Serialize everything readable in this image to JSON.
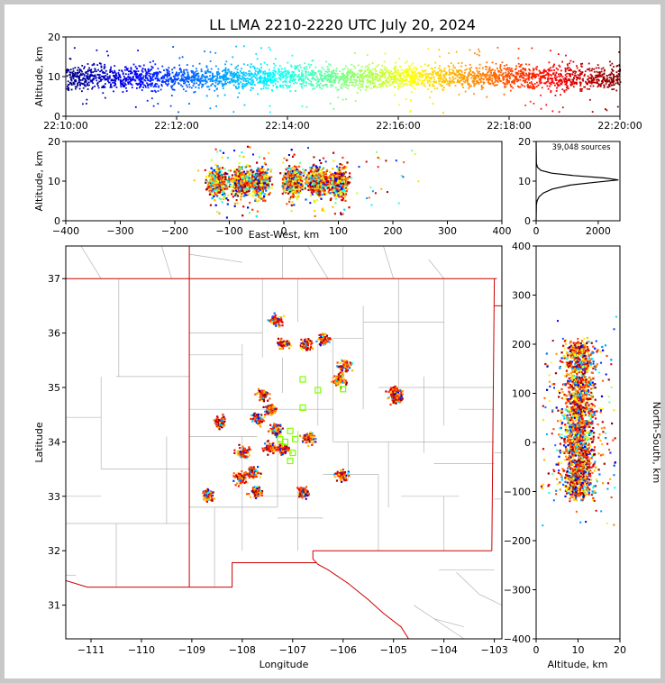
{
  "chart_data": {
    "title": "LL LMA 2210-2220 UTC July 20, 2024",
    "type": "scatter",
    "colors": {
      "time_colormap": [
        "#00007f",
        "#0000ff",
        "#007fff",
        "#00ffff",
        "#7fff7f",
        "#ffff00",
        "#ff7f00",
        "#ff0000",
        "#7f0000"
      ],
      "state_lines": "#cc0000",
      "county_lines": "#b4b4b4",
      "stations": "#7fff00",
      "histogram": "#000000"
    },
    "time_height": {
      "ylabel": "Altitude, km",
      "yticks": [
        "0",
        "10",
        "20"
      ],
      "xticks": [
        "22:10:00",
        "22:12:00",
        "22:14:00",
        "22:16:00",
        "22:18:00",
        "22:20:00"
      ],
      "xlim_minutes": [
        0,
        10
      ],
      "ylim_km": [
        0,
        20
      ],
      "typical_altitude_km": 10
    },
    "ew_height": {
      "xlabel": "East-West, km",
      "ylabel": "Altitude, km",
      "xticks": [
        "−400",
        "−300",
        "−200",
        "−100",
        "0",
        "100",
        "200",
        "300",
        "400"
      ],
      "yticks": [
        "0",
        "10",
        "20"
      ],
      "xlim_km": [
        -400,
        400
      ],
      "ylim_km": [
        0,
        20
      ],
      "cluster_x_km": [
        -122,
        -80,
        -47,
        15,
        60,
        98
      ]
    },
    "altitude_histogram": {
      "annotation": "39,048 sources",
      "xticks": [
        "0",
        "2000"
      ],
      "yticks": [
        "0",
        "10",
        "20"
      ],
      "xlim": [
        0,
        2700
      ],
      "ylim_km": [
        0,
        20
      ],
      "profile": [
        {
          "alt": 0,
          "count": 0
        },
        {
          "alt": 4,
          "count": 10
        },
        {
          "alt": 5,
          "count": 30
        },
        {
          "alt": 6,
          "count": 90
        },
        {
          "alt": 7,
          "count": 230
        },
        {
          "alt": 8,
          "count": 520
        },
        {
          "alt": 9,
          "count": 1100
        },
        {
          "alt": 9.7,
          "count": 1900
        },
        {
          "alt": 10.3,
          "count": 2650
        },
        {
          "alt": 10.8,
          "count": 2200
        },
        {
          "alt": 11.4,
          "count": 1200
        },
        {
          "alt": 12,
          "count": 500
        },
        {
          "alt": 12.7,
          "count": 150
        },
        {
          "alt": 13.5,
          "count": 40
        },
        {
          "alt": 14.5,
          "count": 10
        },
        {
          "alt": 20,
          "count": 0
        }
      ]
    },
    "plan_view": {
      "xlabel": "Longitude",
      "ylabel": "Latitude",
      "xticks": [
        "−111",
        "−110",
        "−109",
        "−108",
        "−107",
        "−106",
        "−105",
        "−104",
        "−103"
      ],
      "yticks": [
        "31",
        "32",
        "33",
        "34",
        "35",
        "36",
        "37"
      ],
      "xlim_deg": [
        -111.5,
        -102.85
      ],
      "ylim_deg": [
        30.38,
        37.6
      ],
      "clusters": [
        {
          "lon": -106.0,
          "lat": 35.4
        },
        {
          "lon": -106.1,
          "lat": 35.15
        },
        {
          "lon": -106.75,
          "lat": 35.8
        },
        {
          "lon": -107.2,
          "lat": 35.82
        },
        {
          "lon": -106.4,
          "lat": 35.9
        },
        {
          "lon": -107.35,
          "lat": 36.25
        },
        {
          "lon": -107.6,
          "lat": 34.87
        },
        {
          "lon": -107.45,
          "lat": 34.6
        },
        {
          "lon": -107.7,
          "lat": 34.45
        },
        {
          "lon": -108.45,
          "lat": 34.38
        },
        {
          "lon": -107.35,
          "lat": 34.25
        },
        {
          "lon": -106.7,
          "lat": 34.08
        },
        {
          "lon": -107.45,
          "lat": 33.9
        },
        {
          "lon": -107.2,
          "lat": 33.9
        },
        {
          "lon": -108.0,
          "lat": 33.83
        },
        {
          "lon": -107.8,
          "lat": 33.45
        },
        {
          "lon": -108.05,
          "lat": 33.35
        },
        {
          "lon": -107.75,
          "lat": 33.1
        },
        {
          "lon": -108.7,
          "lat": 33.05
        },
        {
          "lon": -106.8,
          "lat": 33.08
        },
        {
          "lon": -106.05,
          "lat": 33.4
        },
        {
          "lon": -105.0,
          "lat": 34.95
        },
        {
          "lon": -104.95,
          "lat": 34.82
        }
      ],
      "stations": [
        {
          "lon": -107.25,
          "lat": 34.05
        },
        {
          "lon": -107.05,
          "lat": 34.2
        },
        {
          "lon": -107.15,
          "lat": 34.0
        },
        {
          "lon": -106.95,
          "lat": 34.05
        },
        {
          "lon": -107.0,
          "lat": 33.8
        },
        {
          "lon": -107.05,
          "lat": 33.65
        },
        {
          "lon": -106.8,
          "lat": 35.15
        },
        {
          "lon": -106.5,
          "lat": 34.95
        },
        {
          "lon": -106.0,
          "lat": 34.97
        },
        {
          "lon": -106.8,
          "lat": 34.63
        }
      ]
    },
    "ns_height": {
      "xlabel": "Altitude, km",
      "ylabel": "North-South, km",
      "xticks": [
        "0",
        "10",
        "20"
      ],
      "yticks": [
        "−400",
        "−300",
        "−200",
        "−100",
        "0",
        "100",
        "200",
        "300",
        "400"
      ],
      "xlim_km": [
        0,
        20
      ],
      "ylim_km": [
        -400,
        400
      ],
      "cluster_y_km": [
        190,
        160,
        125,
        95,
        65,
        35,
        10,
        -15,
        -45,
        -70,
        -95
      ]
    }
  }
}
